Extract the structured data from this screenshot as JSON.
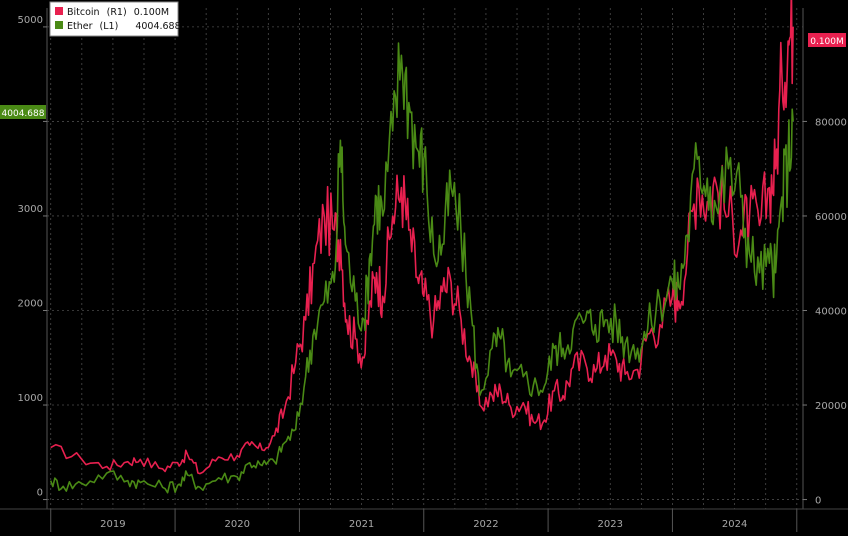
{
  "chart_data": {
    "type": "line",
    "title": "",
    "x_ticks": [
      "2019",
      "2020",
      "2021",
      "2022",
      "2023",
      "2024"
    ],
    "left_axis": {
      "ticks": [
        0,
        1000,
        2000,
        3000,
        4000,
        5000
      ],
      "ylim": [
        -100,
        5200
      ]
    },
    "right_axis": {
      "ticks": [
        0,
        20000,
        40000,
        60000,
        80000
      ],
      "ylim": [
        -2000,
        104000
      ]
    },
    "legend_position": "top-left",
    "grid": true,
    "series": [
      {
        "name": "Bitcoin",
        "legend_tag": "(R1)",
        "last_value": "0.100M",
        "current_label": "0.100M",
        "axis": "right",
        "color": "#e8204f",
        "points": [
          [
            2019.0,
            11000
          ],
          [
            2019.25,
            8500
          ],
          [
            2019.45,
            7000
          ],
          [
            2019.62,
            8000
          ],
          [
            2019.72,
            8500
          ],
          [
            2019.9,
            6500
          ],
          [
            2020.02,
            7800
          ],
          [
            2020.1,
            9500
          ],
          [
            2020.2,
            5500
          ],
          [
            2020.35,
            9000
          ],
          [
            2020.5,
            9300
          ],
          [
            2020.6,
            11500
          ],
          [
            2020.7,
            10500
          ],
          [
            2020.8,
            13500
          ],
          [
            2020.88,
            19000
          ],
          [
            2020.97,
            29000
          ],
          [
            2021.05,
            38000
          ],
          [
            2021.12,
            50000
          ],
          [
            2021.2,
            60000
          ],
          [
            2021.28,
            57000
          ],
          [
            2021.33,
            55000
          ],
          [
            2021.38,
            38000
          ],
          [
            2021.45,
            34000
          ],
          [
            2021.52,
            30000
          ],
          [
            2021.57,
            42000
          ],
          [
            2021.62,
            48000
          ],
          [
            2021.67,
            43000
          ],
          [
            2021.75,
            60000
          ],
          [
            2021.82,
            66000
          ],
          [
            2021.88,
            57000
          ],
          [
            2021.95,
            47000
          ],
          [
            2022.0,
            43000
          ],
          [
            2022.08,
            38000
          ],
          [
            2022.15,
            44000
          ],
          [
            2022.22,
            46000
          ],
          [
            2022.3,
            38000
          ],
          [
            2022.38,
            29000
          ],
          [
            2022.45,
            20000
          ],
          [
            2022.55,
            22000
          ],
          [
            2022.62,
            23000
          ],
          [
            2022.7,
            19500
          ],
          [
            2022.8,
            20500
          ],
          [
            2022.88,
            16500
          ],
          [
            2022.97,
            16800
          ],
          [
            2023.05,
            23000
          ],
          [
            2023.12,
            22000
          ],
          [
            2023.2,
            28000
          ],
          [
            2023.3,
            29000
          ],
          [
            2023.38,
            27000
          ],
          [
            2023.46,
            30500
          ],
          [
            2023.55,
            29500
          ],
          [
            2023.62,
            26500
          ],
          [
            2023.72,
            27500
          ],
          [
            2023.8,
            35000
          ],
          [
            2023.9,
            37000
          ],
          [
            2024.0,
            43000
          ],
          [
            2024.05,
            42000
          ],
          [
            2024.12,
            52000
          ],
          [
            2024.2,
            68000
          ],
          [
            2024.28,
            63000
          ],
          [
            2024.35,
            67000
          ],
          [
            2024.45,
            60000
          ],
          [
            2024.55,
            57000
          ],
          [
            2024.62,
            60000
          ],
          [
            2024.7,
            58000
          ],
          [
            2024.78,
            66000
          ],
          [
            2024.83,
            70000
          ],
          [
            2024.88,
            90000
          ],
          [
            2024.93,
            97000
          ],
          [
            2024.97,
            100000
          ]
        ]
      },
      {
        "name": "Ether",
        "legend_tag": "(L1)",
        "last_value": "4004.688",
        "current_label": "4004.688",
        "axis": "left",
        "color": "#4a8a15",
        "points": [
          [
            2019.0,
            200
          ],
          [
            2019.1,
            140
          ],
          [
            2019.25,
            170
          ],
          [
            2019.45,
            280
          ],
          [
            2019.62,
            200
          ],
          [
            2019.72,
            180
          ],
          [
            2019.9,
            130
          ],
          [
            2020.02,
            150
          ],
          [
            2020.1,
            260
          ],
          [
            2020.2,
            130
          ],
          [
            2020.35,
            230
          ],
          [
            2020.5,
            240
          ],
          [
            2020.6,
            390
          ],
          [
            2020.7,
            360
          ],
          [
            2020.8,
            400
          ],
          [
            2020.88,
            600
          ],
          [
            2020.97,
            740
          ],
          [
            2021.05,
            1300
          ],
          [
            2021.12,
            1800
          ],
          [
            2021.2,
            2100
          ],
          [
            2021.28,
            2300
          ],
          [
            2021.33,
            3800
          ],
          [
            2021.37,
            2700
          ],
          [
            2021.45,
            2100
          ],
          [
            2021.52,
            1900
          ],
          [
            2021.57,
            2600
          ],
          [
            2021.62,
            3200
          ],
          [
            2021.67,
            3000
          ],
          [
            2021.75,
            3900
          ],
          [
            2021.82,
            4700
          ],
          [
            2021.88,
            4200
          ],
          [
            2021.95,
            3700
          ],
          [
            2022.0,
            3600
          ],
          [
            2022.08,
            2600
          ],
          [
            2022.15,
            2700
          ],
          [
            2022.22,
            3300
          ],
          [
            2022.3,
            2800
          ],
          [
            2022.38,
            2000
          ],
          [
            2022.45,
            1100
          ],
          [
            2022.55,
            1600
          ],
          [
            2022.62,
            1700
          ],
          [
            2022.7,
            1300
          ],
          [
            2022.8,
            1300
          ],
          [
            2022.88,
            1200
          ],
          [
            2022.97,
            1200
          ],
          [
            2023.05,
            1600
          ],
          [
            2023.12,
            1600
          ],
          [
            2023.2,
            1800
          ],
          [
            2023.3,
            1900
          ],
          [
            2023.38,
            1850
          ],
          [
            2023.46,
            1900
          ],
          [
            2023.55,
            1850
          ],
          [
            2023.62,
            1650
          ],
          [
            2023.72,
            1600
          ],
          [
            2023.8,
            1800
          ],
          [
            2023.9,
            2100
          ],
          [
            2024.0,
            2300
          ],
          [
            2024.05,
            2250
          ],
          [
            2024.12,
            2800
          ],
          [
            2024.2,
            3600
          ],
          [
            2024.28,
            3400
          ],
          [
            2024.35,
            3100
          ],
          [
            2024.45,
            3500
          ],
          [
            2024.55,
            3200
          ],
          [
            2024.62,
            2600
          ],
          [
            2024.7,
            2400
          ],
          [
            2024.78,
            2500
          ],
          [
            2024.83,
            2400
          ],
          [
            2024.88,
            3200
          ],
          [
            2024.93,
            3600
          ],
          [
            2024.97,
            4004.688
          ]
        ]
      }
    ]
  }
}
